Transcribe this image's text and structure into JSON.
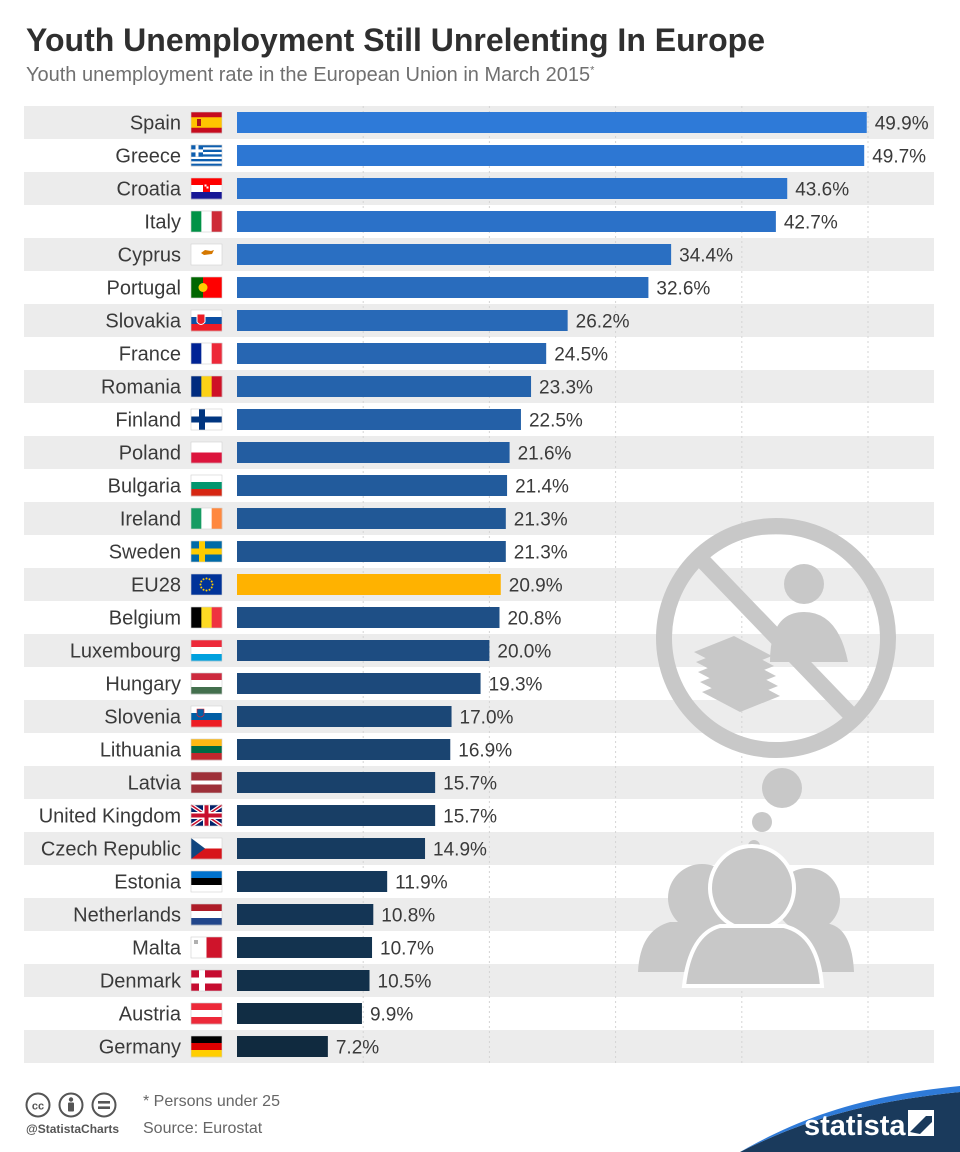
{
  "title": "Youth Unemployment Still Unrelenting In Europe",
  "subtitle": "Youth unemployment rate in the European Union in March 2015",
  "subtitle_mark": "*",
  "footer": {
    "note": "* Persons under 25",
    "source": "Source: Eurostat",
    "handle": "@StatistaCharts",
    "brand": "statista"
  },
  "colors": {
    "bar_top": "#2e7ad8",
    "bar_bottom": "#102a3f",
    "highlight": "#ffb200",
    "stripe": "#ececec",
    "illustration": "#c8c8c8"
  },
  "icons": [
    "cc-icon",
    "by-icon",
    "nd-icon",
    "no-job-illustration",
    "statista-logo-icon"
  ],
  "chart_data": {
    "type": "bar",
    "orientation": "horizontal",
    "title": "Youth Unemployment Still Unrelenting In Europe",
    "unit": "%",
    "xlim": [
      0,
      50
    ],
    "grid": true,
    "highlight": "EU28",
    "categories": [
      "Spain",
      "Greece",
      "Croatia",
      "Italy",
      "Cyprus",
      "Portugal",
      "Slovakia",
      "France",
      "Romania",
      "Finland",
      "Poland",
      "Bulgaria",
      "Ireland",
      "Sweden",
      "EU28",
      "Belgium",
      "Luxembourg",
      "Hungary",
      "Slovenia",
      "Lithuania",
      "Latvia",
      "United Kingdom",
      "Czech Republic",
      "Estonia",
      "Netherlands",
      "Malta",
      "Denmark",
      "Austria",
      "Germany"
    ],
    "values": [
      49.9,
      49.7,
      43.6,
      42.7,
      34.4,
      32.6,
      26.2,
      24.5,
      23.3,
      22.5,
      21.6,
      21.4,
      21.3,
      21.3,
      20.9,
      20.8,
      20.0,
      19.3,
      17.0,
      16.9,
      15.7,
      15.7,
      14.9,
      11.9,
      10.8,
      10.7,
      10.5,
      9.9,
      7.2
    ],
    "labels": [
      "49.9%",
      "49.7%",
      "43.6%",
      "42.7%",
      "34.4%",
      "32.6%",
      "26.2%",
      "24.5%",
      "23.3%",
      "22.5%",
      "21.6%",
      "21.4%",
      "21.3%",
      "21.3%",
      "20.9%",
      "20.8%",
      "20.0%",
      "19.3%",
      "17.0%",
      "16.9%",
      "15.7%",
      "15.7%",
      "14.9%",
      "11.9%",
      "10.8%",
      "10.7%",
      "10.5%",
      "9.9%",
      "7.2%"
    ],
    "flags": [
      "flag-spain",
      "flag-greece",
      "flag-croatia",
      "flag-italy",
      "flag-cyprus",
      "flag-portugal",
      "flag-slovakia",
      "flag-france",
      "flag-romania",
      "flag-finland",
      "flag-poland",
      "flag-bulgaria",
      "flag-ireland",
      "flag-sweden",
      "flag-eu",
      "flag-belgium",
      "flag-luxembourg",
      "flag-hungary",
      "flag-slovenia",
      "flag-lithuania",
      "flag-latvia",
      "flag-united-kingdom",
      "flag-czech-republic",
      "flag-estonia",
      "flag-netherlands",
      "flag-malta",
      "flag-denmark",
      "flag-austria",
      "flag-germany"
    ]
  }
}
